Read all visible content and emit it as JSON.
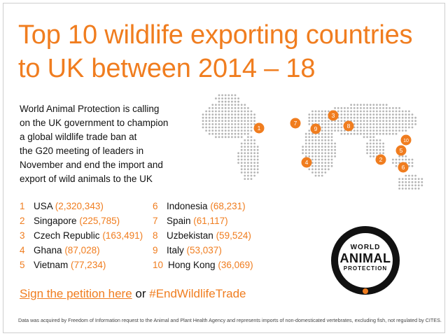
{
  "title": {
    "line1": "Top 10 wildlife exporting countries",
    "line2": "to UK between 2014 – 18"
  },
  "intro": {
    "lines": [
      "World Animal Protection is calling",
      "on the UK government to champion",
      "a global wildlife trade ban at",
      "the G20 meeting of leaders in",
      "November and end the import and",
      "export of wild animals to the UK"
    ]
  },
  "countries": [
    {
      "rank": "1",
      "name": "USA",
      "value": "(2,320,343)"
    },
    {
      "rank": "2",
      "name": "Singapore",
      "value": "(225,785)"
    },
    {
      "rank": "3",
      "name": "Czech Republic",
      "value": "(163,491)"
    },
    {
      "rank": "4",
      "name": "Ghana",
      "value": "(87,028)"
    },
    {
      "rank": "5",
      "name": "Vietnam",
      "value": "(77,234)"
    },
    {
      "rank": "6",
      "name": "Indonesia",
      "value": "(68,231)"
    },
    {
      "rank": "7",
      "name": "Spain",
      "value": "(61,117)"
    },
    {
      "rank": "8",
      "name": "Uzbekistan",
      "value": "(59,524)"
    },
    {
      "rank": "9",
      "name": "Italy",
      "value": "(53,037)"
    },
    {
      "rank": "10",
      "name": "Hong Kong",
      "value": "(36,069)"
    }
  ],
  "map": {
    "markers": [
      "1",
      "2",
      "3",
      "4",
      "5",
      "6",
      "7",
      "8",
      "9",
      "10"
    ],
    "marker_color": "#f07d1f",
    "dot_color": "#b5b5b5"
  },
  "cta": {
    "link": "Sign the petition here",
    "middle": " or ",
    "hashtag": "#EndWildlifeTrade"
  },
  "logo": {
    "line1": "WORLD",
    "line2": "ANIMAL",
    "line3": "PROTECTION"
  },
  "footnote": "Data was acquired by Freedom of Information request to the Animal and Plant Health Agency and represents imports of non-domesticated vertebrates, excluding fish, not regulated by CITES.",
  "colors": {
    "accent": "#f07d1f",
    "text": "#111111"
  }
}
